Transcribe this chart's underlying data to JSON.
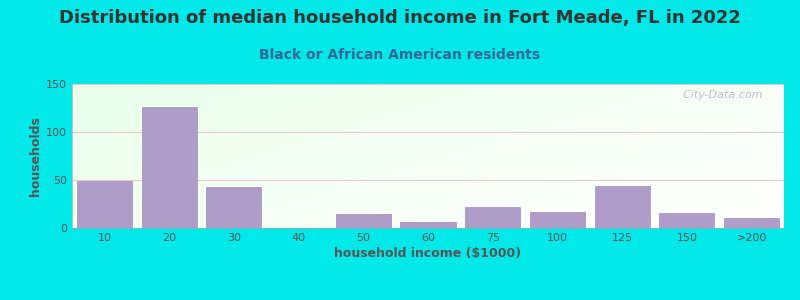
{
  "title": "Distribution of median household income in Fort Meade, FL in 2022",
  "subtitle": "Black or African American residents",
  "xlabel": "household income ($1000)",
  "ylabel": "households",
  "background_outer": "#00e8e8",
  "bar_color": "#b09cc8",
  "bar_edge_color": "#a08cba",
  "categories": [
    "10",
    "20",
    "30",
    "40",
    "50",
    "60",
    "75",
    "100",
    "125",
    "150",
    ">200"
  ],
  "values": [
    49,
    126,
    43,
    0,
    15,
    6,
    22,
    17,
    44,
    16,
    10
  ],
  "ylim": [
    0,
    150
  ],
  "yticks": [
    0,
    50,
    100,
    150
  ],
  "watermark": "  City-Data.com",
  "title_fontsize": 13,
  "subtitle_fontsize": 10,
  "axis_label_fontsize": 9,
  "tick_fontsize": 8,
  "title_color": "#333333",
  "subtitle_color": "#336699",
  "tick_color": "#555555",
  "grid_color": "#e8c8c8",
  "xlabel_color": "#555555",
  "ylabel_color": "#555555"
}
